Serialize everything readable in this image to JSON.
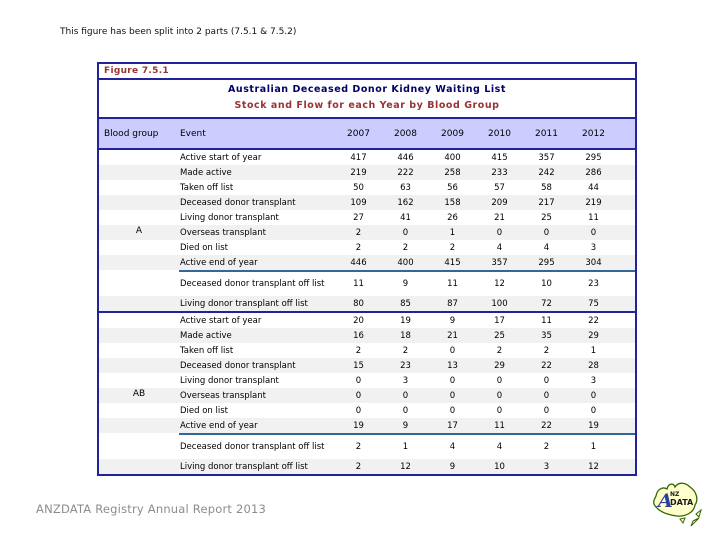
{
  "page": {
    "note": "This figure has been split into 2 parts (7.5.1 & 7.5.2)",
    "footer": "ANZDATA Registry Annual Report 2013",
    "logo": "anzdata-australia-map-logo"
  },
  "figure": {
    "label": "Figure 7.5.1",
    "title1": "Australian Deceased Donor Kidney Waiting List",
    "title2": "Stock and Flow for each Year by Blood Group"
  },
  "table": {
    "col_blood": "Blood group",
    "col_event": "Event",
    "years": [
      "2007",
      "2008",
      "2009",
      "2010",
      "2011",
      "2012"
    ],
    "groups": [
      {
        "name": "A",
        "rows": [
          {
            "event": "Active start of year",
            "values": [
              417,
              446,
              400,
              415,
              357,
              295
            ]
          },
          {
            "event": "Made active",
            "values": [
              219,
              222,
              258,
              233,
              242,
              286
            ]
          },
          {
            "event": "Taken off list",
            "values": [
              50,
              63,
              56,
              57,
              58,
              44
            ]
          },
          {
            "event": "Deceased donor transplant",
            "values": [
              109,
              162,
              158,
              209,
              217,
              219
            ]
          },
          {
            "event": "Living donor transplant",
            "values": [
              27,
              41,
              26,
              21,
              25,
              11
            ]
          },
          {
            "event": "Overseas transplant",
            "values": [
              2,
              0,
              1,
              0,
              0,
              0
            ]
          },
          {
            "event": "Died on list",
            "values": [
              2,
              2,
              2,
              4,
              4,
              3
            ]
          },
          {
            "event": "Active end of year",
            "values": [
              446,
              400,
              415,
              357,
              295,
              304
            ]
          }
        ],
        "offlist": [
          {
            "event": "Deceased donor transplant off list",
            "values": [
              11,
              9,
              11,
              12,
              10,
              23
            ]
          },
          {
            "event": "Living donor transplant off list",
            "values": [
              80,
              85,
              87,
              100,
              72,
              75
            ]
          }
        ]
      },
      {
        "name": "AB",
        "rows": [
          {
            "event": "Active start of year",
            "values": [
              20,
              19,
              9,
              17,
              11,
              22
            ]
          },
          {
            "event": "Made active",
            "values": [
              16,
              18,
              21,
              25,
              35,
              29
            ]
          },
          {
            "event": "Taken off list",
            "values": [
              2,
              2,
              0,
              2,
              2,
              1
            ]
          },
          {
            "event": "Deceased donor transplant",
            "values": [
              15,
              23,
              13,
              29,
              22,
              28
            ]
          },
          {
            "event": "Living donor transplant",
            "values": [
              0,
              3,
              0,
              0,
              0,
              3
            ]
          },
          {
            "event": "Overseas transplant",
            "values": [
              0,
              0,
              0,
              0,
              0,
              0
            ]
          },
          {
            "event": "Died on list",
            "values": [
              0,
              0,
              0,
              0,
              0,
              0
            ]
          },
          {
            "event": "Active end of year",
            "values": [
              19,
              9,
              17,
              11,
              22,
              19
            ]
          }
        ],
        "offlist": [
          {
            "event": "Deceased donor transplant off list",
            "values": [
              2,
              1,
              4,
              4,
              2,
              1
            ]
          },
          {
            "event": "Living donor transplant off list",
            "values": [
              2,
              12,
              9,
              10,
              3,
              12
            ]
          }
        ]
      }
    ]
  },
  "colors": {
    "border_navy": "#22229B",
    "header_bg": "#CCCCFF",
    "row_alt": "#F1F1F1",
    "accent_line": "#336699",
    "figure_label_text": "#993333",
    "title_main_text": "#000066",
    "title_sub_text": "#993333",
    "footer_text": "#8C8C8C",
    "logo_fill": "#FFFFCC",
    "logo_outline": "#336600",
    "logo_a": "#2B3F9E"
  }
}
